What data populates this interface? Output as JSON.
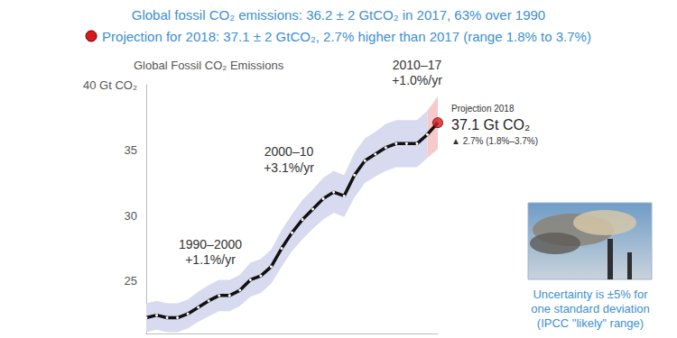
{
  "chart_data": {
    "type": "line",
    "title": "Global Fossil CO₂ Emissions",
    "subtitle": [
      "Global fossil CO₂ emissions: 36.2 ± 2 GtCO₂ in 2017, 63% over 1990",
      "Projection for 2018: 37.1 ± 2 GtCO₂, 2.7% higher than 2017 (range 1.8% to 3.7%)"
    ],
    "x": [
      1990,
      1991,
      1992,
      1993,
      1994,
      1995,
      1996,
      1997,
      1998,
      1999,
      2000,
      2001,
      2002,
      2003,
      2004,
      2005,
      2006,
      2007,
      2008,
      2009,
      2010,
      2011,
      2012,
      2013,
      2014,
      2015,
      2016,
      2017,
      2018
    ],
    "series": [
      {
        "type": "band",
        "color": "#d8daef",
        "lower": [
          21.1,
          21.3,
          21.1,
          21.1,
          21.4,
          21.9,
          22.3,
          22.7,
          22.7,
          23.1,
          23.8,
          24.1,
          24.8,
          26.1,
          27.3,
          28.2,
          29.0,
          29.7,
          30.2,
          29.9,
          31.4,
          32.5,
          33.0,
          33.4,
          33.7,
          33.7,
          33.7,
          34.4,
          null
        ],
        "upper": [
          23.3,
          23.5,
          23.3,
          23.3,
          23.6,
          24.2,
          24.7,
          25.1,
          25.1,
          25.5,
          26.4,
          26.7,
          27.4,
          28.9,
          30.1,
          31.2,
          32.0,
          32.9,
          33.4,
          33.1,
          34.8,
          35.9,
          36.4,
          37.0,
          37.3,
          37.3,
          37.3,
          38.0,
          null
        ]
      },
      {
        "type": "band",
        "color": "#f6caca",
        "lower": [
          null,
          null,
          null,
          null,
          null,
          null,
          null,
          null,
          null,
          null,
          null,
          null,
          null,
          null,
          null,
          null,
          null,
          null,
          null,
          null,
          null,
          null,
          null,
          null,
          null,
          null,
          null,
          34.4,
          35.1
        ],
        "upper": [
          null,
          null,
          null,
          null,
          null,
          null,
          null,
          null,
          null,
          null,
          null,
          null,
          null,
          null,
          null,
          null,
          null,
          null,
          null,
          null,
          null,
          null,
          null,
          null,
          null,
          null,
          null,
          38.0,
          39.1
        ]
      },
      {
        "type": "line",
        "color": "#111111",
        "marker": "circle",
        "line_style": "solid",
        "values": [
          22.2,
          22.4,
          22.2,
          22.2,
          22.5,
          23.0,
          23.5,
          23.9,
          23.9,
          24.3,
          25.1,
          25.4,
          26.1,
          27.5,
          28.7,
          29.7,
          30.5,
          31.3,
          31.8,
          31.5,
          33.1,
          34.2,
          34.7,
          35.2,
          35.5,
          35.5,
          35.5,
          36.2,
          null
        ]
      },
      {
        "type": "line",
        "color": "#111111",
        "marker": "none",
        "line_style": "solid",
        "values": [
          null,
          null,
          null,
          null,
          null,
          null,
          null,
          null,
          null,
          null,
          null,
          null,
          null,
          null,
          null,
          null,
          null,
          null,
          null,
          null,
          null,
          null,
          null,
          null,
          null,
          null,
          null,
          36.2,
          37.1
        ]
      },
      {
        "type": "scatter",
        "color": "#d7191c",
        "marker": "circle",
        "values": [
          null,
          null,
          null,
          null,
          null,
          null,
          null,
          null,
          null,
          null,
          null,
          null,
          null,
          null,
          null,
          null,
          null,
          null,
          null,
          null,
          null,
          null,
          null,
          null,
          null,
          null,
          null,
          null,
          37.1
        ]
      }
    ],
    "xlim": [
      1990,
      2018
    ],
    "ylim": [
      21,
      40
    ],
    "yticks": [
      25,
      30,
      35,
      {
        "value": 40,
        "label": "40 Gt CO₂"
      }
    ],
    "tick_labels": "y",
    "grid": false,
    "annotations": [
      [
        "1990–2000",
        "+1.1%/yr"
      ],
      [
        "2000–10",
        "+3.1%/yr"
      ],
      [
        "2010–17",
        "+1.0%/yr"
      ],
      [
        "Projection 2018",
        "37.1 Gt CO₂",
        "▲ 2.7% (1.8%–3.7%)"
      ],
      [
        "Uncertainty is ±5% for",
        "one standard deviation",
        "(IPCC \"likely\" range)"
      ]
    ]
  }
}
